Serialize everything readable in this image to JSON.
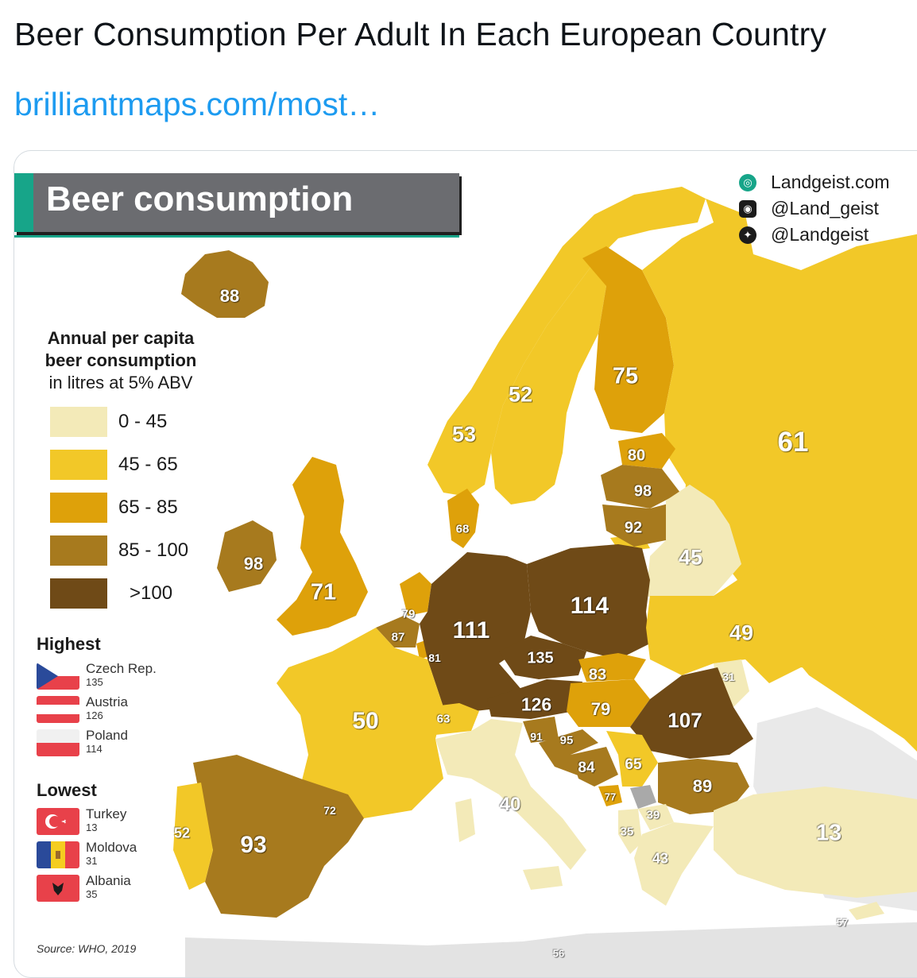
{
  "tweet": {
    "title": "Beer Consumption Per Adult In Each European Country",
    "link": "brilliantmaps.com/most…"
  },
  "map": {
    "banner_title": "Beer consumption",
    "social": [
      {
        "icon": "globe-icon",
        "text": "Landgeist.com"
      },
      {
        "icon": "instagram-icon",
        "text": "@Land_geist"
      },
      {
        "icon": "twitter-icon",
        "text": "@Landgeist"
      }
    ],
    "legend": {
      "title_line1": "Annual per capita",
      "title_line2": "beer consumption",
      "title_line3": "in litres at 5% ABV",
      "items": [
        {
          "label": "0  -  45",
          "color": "#f3eab8"
        },
        {
          "label": "45  -  65",
          "color": "#f2c828"
        },
        {
          "label": "65  -  85",
          "color": "#dea10a"
        },
        {
          "label": "85  -  100",
          "color": "#a77a1e"
        },
        {
          "label": ">100",
          "color": "#6f4a17"
        }
      ]
    },
    "highest": {
      "heading": "Highest",
      "items": [
        {
          "name": "Czech Rep.",
          "value": "135"
        },
        {
          "name": "Austria",
          "value": "126"
        },
        {
          "name": "Poland",
          "value": "114"
        }
      ]
    },
    "lowest": {
      "heading": "Lowest",
      "items": [
        {
          "name": "Turkey",
          "value": "13"
        },
        {
          "name": "Moldova",
          "value": "31"
        },
        {
          "name": "Albania",
          "value": "35"
        }
      ]
    },
    "source": "Source: WHO, 2019",
    "colors": {
      "sea": "#ffffff",
      "nondata": "#e3e3e3",
      "kosovo": "#a9a9a9"
    },
    "countries": [
      {
        "id": "iceland",
        "value": "88"
      },
      {
        "id": "norway",
        "value": "53"
      },
      {
        "id": "sweden",
        "value": "52"
      },
      {
        "id": "finland",
        "value": "75"
      },
      {
        "id": "russia",
        "value": "61"
      },
      {
        "id": "estonia",
        "value": "80"
      },
      {
        "id": "latvia",
        "value": "98"
      },
      {
        "id": "lithuania",
        "value": "92"
      },
      {
        "id": "belarus",
        "value": "45"
      },
      {
        "id": "denmark",
        "value": "68"
      },
      {
        "id": "ireland",
        "value": "98"
      },
      {
        "id": "uk",
        "value": "71"
      },
      {
        "id": "netherlands",
        "value": "79"
      },
      {
        "id": "belgium",
        "value": "87"
      },
      {
        "id": "luxembourg",
        "value": "81"
      },
      {
        "id": "germany",
        "value": "111"
      },
      {
        "id": "poland",
        "value": "114"
      },
      {
        "id": "ukraine",
        "value": "49"
      },
      {
        "id": "moldova",
        "value": "31"
      },
      {
        "id": "czech",
        "value": "135"
      },
      {
        "id": "slovakia",
        "value": "83"
      },
      {
        "id": "austria",
        "value": "126"
      },
      {
        "id": "hungary",
        "value": "79"
      },
      {
        "id": "romania",
        "value": "107"
      },
      {
        "id": "france",
        "value": "50"
      },
      {
        "id": "switzerland",
        "value": "63"
      },
      {
        "id": "slovenia",
        "value": "91"
      },
      {
        "id": "croatia",
        "value": "95"
      },
      {
        "id": "bosnia",
        "value": "84"
      },
      {
        "id": "serbia",
        "value": "65"
      },
      {
        "id": "montenegro",
        "value": "77"
      },
      {
        "id": "bulgaria",
        "value": "89"
      },
      {
        "id": "macedonia",
        "value": "39"
      },
      {
        "id": "albania",
        "value": "35"
      },
      {
        "id": "greece",
        "value": "43"
      },
      {
        "id": "turkey",
        "value": "13"
      },
      {
        "id": "cyprus",
        "value": "57"
      },
      {
        "id": "italy",
        "value": "40"
      },
      {
        "id": "spain",
        "value": "93"
      },
      {
        "id": "portugal",
        "value": "52"
      },
      {
        "id": "andorra",
        "value": "72"
      },
      {
        "id": "malta",
        "value": "56"
      }
    ]
  }
}
